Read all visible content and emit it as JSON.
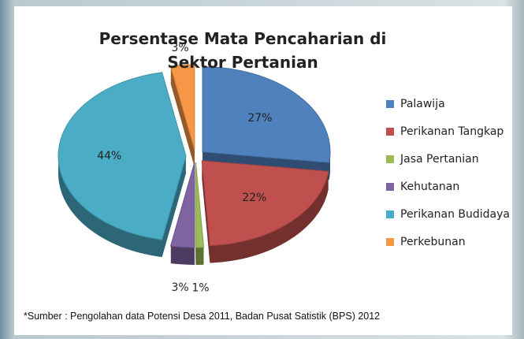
{
  "chart_data": {
    "type": "pie",
    "title": "Persentase Mata Pencaharian di Sektor Pertanian",
    "categories": [
      "Palawija",
      "Perikanan Tangkap",
      "Jasa Pertanian",
      "Kehutanan",
      "Perikanan Budidaya",
      "Perkebunan"
    ],
    "values": [
      27,
      22,
      1,
      3,
      44,
      3
    ],
    "value_labels": [
      "27%",
      "22%",
      "1%",
      "3%",
      "44%",
      "3%"
    ],
    "colors": [
      "#4f81bd",
      "#c0504d",
      "#9bbb59",
      "#8064a2",
      "#4bacc6",
      "#f79646"
    ],
    "legend": "right",
    "source": "*Sumber : Pengolahan data Potensi Desa 2011, Badan Pusat Satistik (BPS) 2012"
  }
}
